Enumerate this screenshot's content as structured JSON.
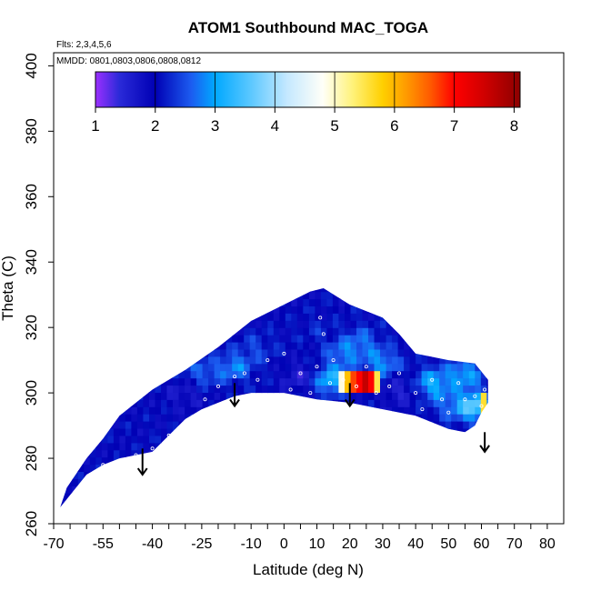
{
  "chart_data": {
    "type": "heatmap",
    "title": "ATOM1 Southbound MAC_TOGA",
    "annotations": {
      "flights": "Flts: 2,3,4,5,6",
      "dates": "MMDD: 0801,0803,0806,0808,0812"
    },
    "xlabel": "Latitude (deg N)",
    "ylabel": "Theta (C)",
    "xlim": [
      -70,
      85
    ],
    "ylim": [
      260,
      404
    ],
    "x_major_ticks": [
      -70,
      -55,
      -40,
      -25,
      -10,
      0,
      10,
      20,
      30,
      40,
      50,
      60,
      70,
      80
    ],
    "x_minor_step": 5,
    "y_ticks": [
      260,
      280,
      300,
      320,
      340,
      360,
      380,
      400
    ],
    "colorbar": {
      "range": [
        1,
        8.1
      ],
      "ticks": [
        1,
        2,
        3,
        4,
        5,
        6,
        7,
        8
      ],
      "stops": [
        {
          "v": 1.0,
          "color": "#9b30ff"
        },
        {
          "v": 1.4,
          "color": "#2a2ad8"
        },
        {
          "v": 2.0,
          "color": "#0000b4"
        },
        {
          "v": 2.6,
          "color": "#1c5cf0"
        },
        {
          "v": 3.0,
          "color": "#00a8ff"
        },
        {
          "v": 3.6,
          "color": "#5cc8ff"
        },
        {
          "v": 4.2,
          "color": "#c4e8ff"
        },
        {
          "v": 4.8,
          "color": "#fffff8"
        },
        {
          "v": 5.3,
          "color": "#fff27a"
        },
        {
          "v": 5.8,
          "color": "#ffd000"
        },
        {
          "v": 6.2,
          "color": "#ff9a00"
        },
        {
          "v": 6.6,
          "color": "#ff5a00"
        },
        {
          "v": 7.0,
          "color": "#ff0000"
        },
        {
          "v": 7.5,
          "color": "#d00000"
        },
        {
          "v": 8.1,
          "color": "#8c0000"
        }
      ]
    },
    "field_polygon": [
      [
        -68,
        265
      ],
      [
        -60,
        275
      ],
      [
        -55,
        278
      ],
      [
        -50,
        280
      ],
      [
        -45,
        281
      ],
      [
        -40,
        282
      ],
      [
        -35,
        287
      ],
      [
        -30,
        292
      ],
      [
        -25,
        295
      ],
      [
        -20,
        297
      ],
      [
        -15,
        299
      ],
      [
        -10,
        300
      ],
      [
        0,
        300
      ],
      [
        10,
        298
      ],
      [
        20,
        297
      ],
      [
        30,
        295
      ],
      [
        40,
        293
      ],
      [
        50,
        289
      ],
      [
        55,
        288
      ],
      [
        58,
        290
      ],
      [
        60,
        294
      ],
      [
        62,
        297
      ],
      [
        62,
        304
      ],
      [
        58,
        309
      ],
      [
        50,
        310
      ],
      [
        40,
        312
      ],
      [
        35,
        318
      ],
      [
        30,
        323
      ],
      [
        20,
        327
      ],
      [
        12,
        332
      ],
      [
        8,
        331
      ],
      [
        0,
        327
      ],
      [
        -10,
        322
      ],
      [
        -20,
        314
      ],
      [
        -30,
        307
      ],
      [
        -40,
        301
      ],
      [
        -50,
        293
      ],
      [
        -55,
        286
      ],
      [
        -60,
        280
      ],
      [
        -66,
        271
      ]
    ],
    "field_blobs": [
      {
        "lat": 5,
        "theta": 305,
        "value": 1.5
      },
      {
        "lat": -15,
        "theta": 308,
        "value": 2.8
      },
      {
        "lat": 14,
        "theta": 304,
        "value": 3.2
      },
      {
        "lat": 18,
        "theta": 312,
        "value": 2.7
      },
      {
        "lat": 30,
        "theta": 309,
        "value": 2.9
      },
      {
        "lat": 45,
        "theta": 303,
        "value": 3.1
      },
      {
        "lat": 55,
        "theta": 306,
        "value": 3.0
      },
      {
        "lat": 50,
        "theta": 296,
        "value": 2.5
      },
      {
        "lat": 58,
        "theta": 296,
        "value": 3.6
      },
      {
        "lat": -25,
        "theta": 306,
        "value": 2.6
      },
      {
        "lat": -8,
        "theta": 314,
        "value": 2.4
      },
      {
        "lat": 35,
        "theta": 301,
        "value": 1.5
      },
      {
        "lat": -30,
        "theta": 300,
        "value": 1.6
      },
      {
        "lat": 10,
        "theta": 319,
        "value": 2.2
      },
      {
        "lat": 24,
        "theta": 316,
        "value": 2.6
      }
    ],
    "hot_spots": [
      {
        "lat_range": [
          17,
          29
        ],
        "theta_range": [
          301,
          306
        ],
        "values": [
          4.9,
          5.4,
          5.9,
          6.3,
          6.7,
          7.0,
          7.2,
          7.6,
          7.4,
          7.0,
          6.4,
          5.5
        ]
      },
      {
        "lat_range": [
          60,
          62
        ],
        "theta_range": [
          294,
          301
        ],
        "values": [
          4.8,
          5.6,
          6.2,
          7.5
        ]
      }
    ],
    "points": [
      [
        -55,
        278
      ],
      [
        -45,
        281
      ],
      [
        -40,
        283
      ],
      [
        -35,
        287
      ],
      [
        -28,
        292
      ],
      [
        -24,
        298
      ],
      [
        -20,
        302
      ],
      [
        -15,
        305
      ],
      [
        -12,
        306
      ],
      [
        -8,
        304
      ],
      [
        -5,
        310
      ],
      [
        0,
        312
      ],
      [
        2,
        301
      ],
      [
        5,
        306
      ],
      [
        8,
        300
      ],
      [
        10,
        308
      ],
      [
        12,
        318
      ],
      [
        11,
        323
      ],
      [
        14,
        303
      ],
      [
        15,
        310
      ],
      [
        18,
        304
      ],
      [
        22,
        302
      ],
      [
        25,
        308
      ],
      [
        28,
        300
      ],
      [
        32,
        302
      ],
      [
        35,
        306
      ],
      [
        40,
        300
      ],
      [
        42,
        295
      ],
      [
        45,
        304
      ],
      [
        48,
        298
      ],
      [
        50,
        294
      ],
      [
        53,
        303
      ],
      [
        55,
        298
      ],
      [
        58,
        299
      ],
      [
        60,
        296
      ],
      [
        61,
        301
      ]
    ],
    "profile_arrows": [
      {
        "lat": -43,
        "theta_top": 283,
        "theta_bottom": 275
      },
      {
        "lat": -15,
        "theta_top": 303,
        "theta_bottom": 296
      },
      {
        "lat": 20,
        "theta_top": 303,
        "theta_bottom": 296
      },
      {
        "lat": 61,
        "theta_top": 288,
        "theta_bottom": 282
      }
    ]
  }
}
